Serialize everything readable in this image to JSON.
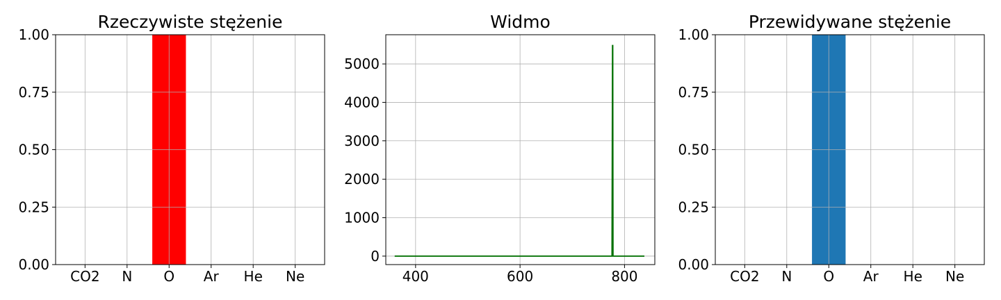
{
  "chart_data": [
    {
      "type": "bar",
      "title": "Rzeczywiste stężenie",
      "categories": [
        "CO2",
        "N",
        "O",
        "Ar",
        "He",
        "Ne"
      ],
      "values": [
        0,
        0,
        1,
        0,
        0,
        0
      ],
      "ylim": [
        0,
        1
      ],
      "yticks": [
        "0.00",
        "0.25",
        "0.50",
        "0.75",
        "1.00"
      ],
      "color": "#ff0000",
      "grid": true
    },
    {
      "type": "line",
      "title": "Widmo",
      "xlim": [
        343,
        858
      ],
      "ylim": [
        -220,
        5760
      ],
      "xticks": [
        400,
        600,
        800
      ],
      "yticks": [
        0,
        1000,
        2000,
        3000,
        4000,
        5000
      ],
      "series": [
        {
          "x": [
            360,
            776,
            777,
            777.5,
            778,
            779,
            838
          ],
          "y": [
            0,
            0,
            5480,
            5480,
            0,
            0,
            0
          ]
        }
      ],
      "color": "#007000",
      "grid": true
    },
    {
      "type": "bar",
      "title": "Przewidywane stężenie",
      "categories": [
        "CO2",
        "N",
        "O",
        "Ar",
        "He",
        "Ne"
      ],
      "values": [
        0,
        0,
        1,
        0,
        0,
        0
      ],
      "ylim": [
        0,
        1
      ],
      "yticks": [
        "0.00",
        "0.25",
        "0.50",
        "0.75",
        "1.00"
      ],
      "color": "#1f77b4",
      "grid": true
    }
  ]
}
